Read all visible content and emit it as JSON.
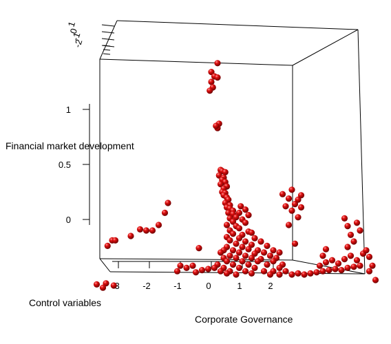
{
  "chart_data": {
    "type": "scatter",
    "title": "",
    "xlabel": "Control variables",
    "ylabel": "Corporate Governance",
    "zlabel": "Financial market development",
    "x_ticks": [
      "-3",
      "-2",
      "-1",
      "0",
      "1",
      "2"
    ],
    "z_ticks": [
      "1",
      "0.5",
      "0"
    ],
    "back_z_ticks": [
      "1",
      "0",
      "-1",
      "-2"
    ],
    "marker_color": "#d40000",
    "grid": false,
    "points": [
      {
        "x": 0.2,
        "z": 1.42
      },
      {
        "x": 0.0,
        "z": 1.34
      },
      {
        "x": 0.1,
        "z": 1.3
      },
      {
        "x": 0.2,
        "z": 1.29
      },
      {
        "x": 0.0,
        "z": 1.25
      },
      {
        "x": 0.05,
        "z": 1.2
      },
      {
        "x": -0.05,
        "z": 1.17
      },
      {
        "x": 0.25,
        "z": 0.87
      },
      {
        "x": 0.2,
        "z": 0.83
      },
      {
        "x": 0.15,
        "z": 0.85
      },
      {
        "x": 0.3,
        "z": 0.45
      },
      {
        "x": 0.35,
        "z": 0.44
      },
      {
        "x": 0.45,
        "z": 0.43
      },
      {
        "x": 0.25,
        "z": 0.4
      },
      {
        "x": 0.4,
        "z": 0.38
      },
      {
        "x": 0.35,
        "z": 0.36
      },
      {
        "x": 0.45,
        "z": 0.34
      },
      {
        "x": 0.3,
        "z": 0.32
      },
      {
        "x": 0.5,
        "z": 0.3
      },
      {
        "x": 0.4,
        "z": 0.28
      },
      {
        "x": 0.35,
        "z": 0.25
      },
      {
        "x": 0.45,
        "z": 0.24
      },
      {
        "x": 0.4,
        "z": 0.22
      },
      {
        "x": 0.5,
        "z": 0.2
      },
      {
        "x": 0.55,
        "z": 0.18
      },
      {
        "x": 0.45,
        "z": 0.15
      },
      {
        "x": 0.6,
        "z": 0.13
      },
      {
        "x": 0.5,
        "z": 0.11
      },
      {
        "x": 0.6,
        "z": 0.1
      },
      {
        "x": 0.7,
        "z": 0.08
      },
      {
        "x": 0.55,
        "z": 0.06
      },
      {
        "x": 0.7,
        "z": 0.05
      },
      {
        "x": 0.95,
        "z": 0.12
      },
      {
        "x": 1.1,
        "z": 0.09
      },
      {
        "x": 0.9,
        "z": 0.06
      },
      {
        "x": 1.2,
        "z": 0.04
      },
      {
        "x": 0.8,
        "z": 0.02
      },
      {
        "x": 0.6,
        "z": 0.01
      },
      {
        "x": 1.0,
        "z": 0.0
      },
      {
        "x": 0.7,
        "z": -0.02
      },
      {
        "x": 1.1,
        "z": -0.03
      },
      {
        "x": 0.5,
        "z": -0.05
      },
      {
        "x": 0.8,
        "z": -0.06
      },
      {
        "x": 0.9,
        "z": -0.08
      },
      {
        "x": 0.6,
        "z": -0.1
      },
      {
        "x": 1.2,
        "z": -0.11
      },
      {
        "x": 0.7,
        "z": -0.13
      },
      {
        "x": 1.0,
        "z": -0.14
      },
      {
        "x": 1.3,
        "z": -0.12
      },
      {
        "x": 0.5,
        "z": -0.16
      },
      {
        "x": 0.9,
        "z": -0.17
      },
      {
        "x": 1.4,
        "z": -0.17
      },
      {
        "x": 0.6,
        "z": -0.19
      },
      {
        "x": 1.1,
        "z": -0.2
      },
      {
        "x": 1.6,
        "z": -0.2
      },
      {
        "x": 0.8,
        "z": -0.22
      },
      {
        "x": 1.3,
        "z": -0.23
      },
      {
        "x": 0.5,
        "z": -0.25
      },
      {
        "x": 1.0,
        "z": -0.25
      },
      {
        "x": 1.8,
        "z": -0.24
      },
      {
        "x": 0.4,
        "z": -0.28
      },
      {
        "x": 0.7,
        "z": -0.28
      },
      {
        "x": 1.2,
        "z": -0.27
      },
      {
        "x": 1.5,
        "z": -0.28
      },
      {
        "x": 2.0,
        "z": -0.28
      },
      {
        "x": 0.3,
        "z": -0.3
      },
      {
        "x": 0.9,
        "z": -0.3
      },
      {
        "x": 1.4,
        "z": -0.31
      },
      {
        "x": 1.7,
        "z": -0.3
      },
      {
        "x": 2.2,
        "z": -0.3
      },
      {
        "x": 0.6,
        "z": -0.33
      },
      {
        "x": 1.1,
        "z": -0.33
      },
      {
        "x": 1.9,
        "z": -0.33
      },
      {
        "x": 0.4,
        "z": -0.35
      },
      {
        "x": 0.8,
        "z": -0.35
      },
      {
        "x": 1.3,
        "z": -0.35
      },
      {
        "x": 1.6,
        "z": -0.36
      },
      {
        "x": 2.1,
        "z": -0.35
      },
      {
        "x": 0.5,
        "z": -0.38
      },
      {
        "x": 1.0,
        "z": -0.38
      },
      {
        "x": 1.5,
        "z": -0.38
      },
      {
        "x": 2.0,
        "z": -0.38
      },
      {
        "x": 0.2,
        "z": -0.41
      },
      {
        "x": 0.7,
        "z": -0.41
      },
      {
        "x": 1.2,
        "z": -0.41
      },
      {
        "x": 1.8,
        "z": -0.41
      },
      {
        "x": 2.3,
        "z": -0.41
      },
      {
        "x": 0.1,
        "z": -0.44
      },
      {
        "x": 0.4,
        "z": -0.44
      },
      {
        "x": 0.9,
        "z": -0.44
      },
      {
        "x": 1.4,
        "z": -0.44
      },
      {
        "x": 2.2,
        "z": -0.44
      },
      {
        "x": 0.3,
        "z": -0.47
      },
      {
        "x": 0.6,
        "z": -0.47
      },
      {
        "x": 1.1,
        "z": -0.47
      },
      {
        "x": 1.7,
        "z": -0.47
      },
      {
        "x": 2.0,
        "z": -0.47
      },
      {
        "x": 2.4,
        "z": -0.47
      },
      {
        "x": 0.5,
        "z": -0.49
      },
      {
        "x": 0.8,
        "z": -0.5
      },
      {
        "x": 1.3,
        "z": -0.49
      },
      {
        "x": 1.9,
        "z": -0.5
      },
      {
        "x": 2.2,
        "z": -0.5
      },
      {
        "x": 2.6,
        "z": -0.5
      },
      {
        "x": 2.8,
        "z": -0.49
      },
      {
        "x": 3.0,
        "z": -0.5
      },
      {
        "x": 3.2,
        "z": -0.49
      },
      {
        "x": 3.4,
        "z": -0.48
      },
      {
        "x": 3.6,
        "z": -0.47
      },
      {
        "x": 3.8,
        "z": -0.46
      },
      {
        "x": 4.0,
        "z": -0.45
      },
      {
        "x": 4.2,
        "z": -0.46
      },
      {
        "x": 4.4,
        "z": -0.44
      },
      {
        "x": 4.6,
        "z": -0.43
      },
      {
        "x": 4.8,
        "z": -0.42
      },
      {
        "x": 3.5,
        "z": -0.42
      },
      {
        "x": 3.7,
        "z": -0.39
      },
      {
        "x": 3.9,
        "z": -0.37
      },
      {
        "x": 4.1,
        "z": -0.4
      },
      {
        "x": 4.3,
        "z": -0.36
      },
      {
        "x": 4.5,
        "z": -0.33
      },
      {
        "x": 4.7,
        "z": -0.37
      },
      {
        "x": 4.9,
        "z": -0.31
      },
      {
        "x": 5.1,
        "z": -0.34
      },
      {
        "x": 3.6,
        "z": -0.33
      },
      {
        "x": 3.7,
        "z": -0.27
      },
      {
        "x": 4.4,
        "z": -0.25
      },
      {
        "x": 4.6,
        "z": -0.2
      },
      {
        "x": 4.5,
        "z": -0.14
      },
      {
        "x": 4.8,
        "z": -0.1
      },
      {
        "x": 4.4,
        "z": -0.06
      },
      {
        "x": 4.7,
        "z": -0.03
      },
      {
        "x": 4.3,
        "z": 0.01
      },
      {
        "x": 5.0,
        "z": -0.28
      },
      {
        "x": 5.2,
        "z": -0.42
      },
      {
        "x": 5.3,
        "z": -0.55
      },
      {
        "x": 5.1,
        "z": -0.47
      },
      {
        "x": 2.7,
        "z": -0.22
      },
      {
        "x": 2.5,
        "z": -0.05
      },
      {
        "x": 2.8,
        "z": 0.02
      },
      {
        "x": 2.6,
        "z": 0.08
      },
      {
        "x": 2.9,
        "z": 0.11
      },
      {
        "x": 2.7,
        "z": 0.14
      },
      {
        "x": 2.8,
        "z": 0.18
      },
      {
        "x": 2.9,
        "z": 0.22
      },
      {
        "x": 2.5,
        "z": 0.19
      },
      {
        "x": 2.6,
        "z": 0.27
      },
      {
        "x": 2.3,
        "z": 0.23
      },
      {
        "x": 2.4,
        "z": 0.12
      },
      {
        "x": -0.4,
        "z": -0.26
      },
      {
        "x": -0.6,
        "z": -0.42
      },
      {
        "x": -0.8,
        "z": -0.44
      },
      {
        "x": -1.0,
        "z": -0.42
      },
      {
        "x": -1.1,
        "z": -0.47
      },
      {
        "x": -0.5,
        "z": -0.48
      },
      {
        "x": -0.3,
        "z": -0.46
      },
      {
        "x": -0.1,
        "z": -0.45
      },
      {
        "x": -1.4,
        "z": 0.15
      },
      {
        "x": -1.5,
        "z": 0.06
      },
      {
        "x": -1.7,
        "z": -0.05
      },
      {
        "x": -1.9,
        "z": -0.1
      },
      {
        "x": -2.1,
        "z": -0.1
      },
      {
        "x": -2.3,
        "z": -0.09
      },
      {
        "x": -2.6,
        "z": -0.15
      },
      {
        "x": -3.2,
        "z": -0.19
      },
      {
        "x": -3.35,
        "z": -0.24
      },
      {
        "x": -3.1,
        "z": -0.19
      },
      {
        "x": -3.7,
        "z": -0.59
      },
      {
        "x": -3.4,
        "z": -0.58
      },
      {
        "x": -3.5,
        "z": -0.62
      },
      {
        "x": -3.15,
        "z": -0.6
      }
    ]
  }
}
